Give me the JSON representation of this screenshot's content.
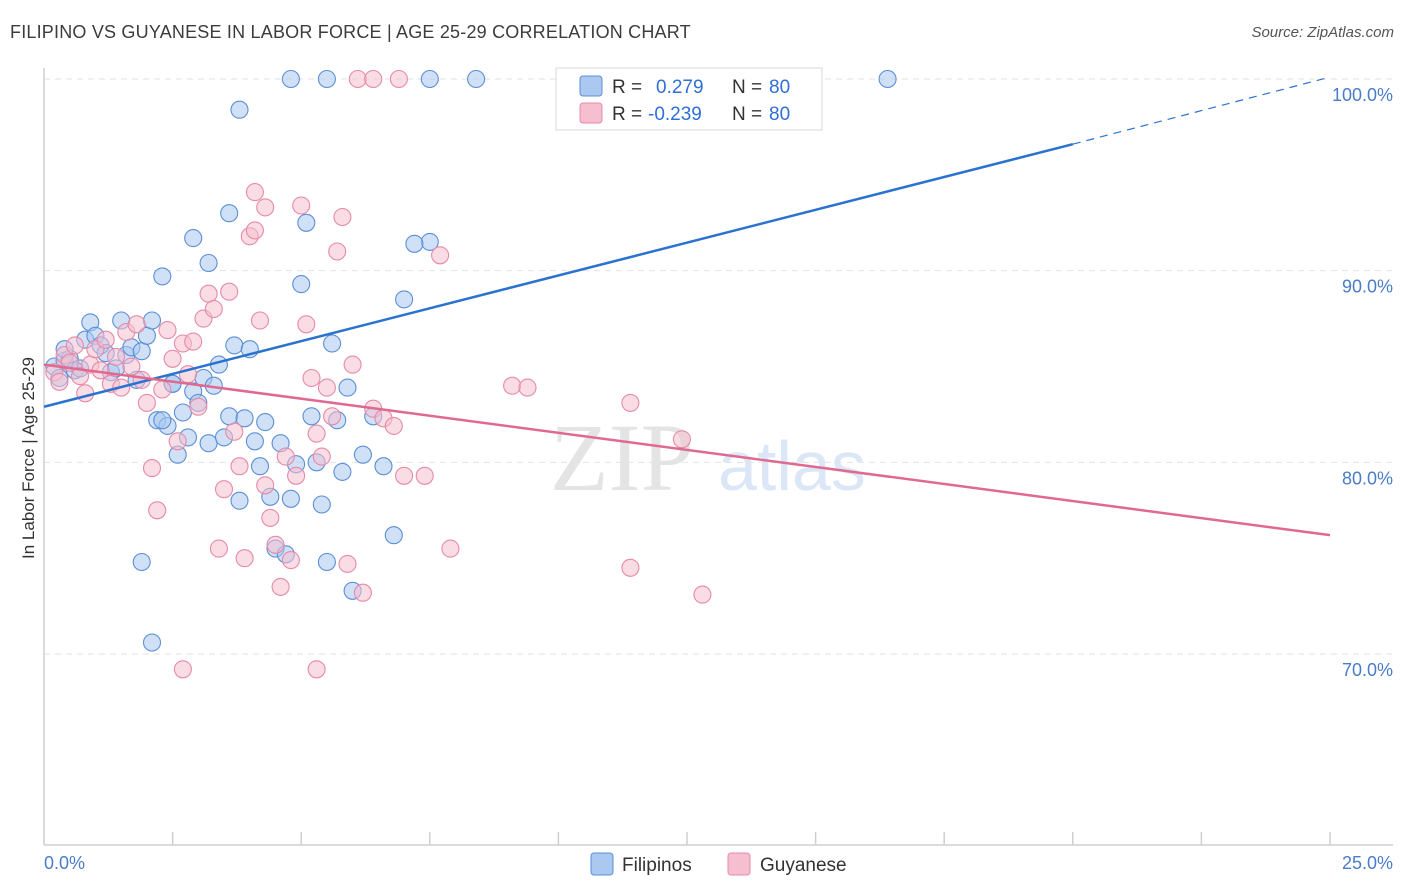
{
  "header": {
    "title": "FILIPINO VS GUYANESE IN LABOR FORCE | AGE 25-29 CORRELATION CHART",
    "source": "Source: ZipAtlas.com"
  },
  "watermark": {
    "zip": "ZIP",
    "atlas": "atlas"
  },
  "colors": {
    "blue_fill": "#aac8f0",
    "blue_stroke": "#5b8fd6",
    "blue_line": "#2a72d0",
    "pink_fill": "#f6bfd0",
    "pink_stroke": "#e68aa8",
    "pink_line": "#e0698f",
    "grid": "#e2e2e2",
    "tick_text": "#4a7cc9"
  },
  "legend": {
    "rows": [
      {
        "r_label": "R =",
        "r_value": "0.279",
        "n_label": "N =",
        "n_value": "80"
      },
      {
        "r_label": "R =",
        "r_value": "-0.239",
        "n_label": "N =",
        "n_value": "80"
      }
    ]
  },
  "bottom_legend": {
    "items": [
      "Filipinos",
      "Guyanese"
    ]
  },
  "chart_data": {
    "type": "scatter",
    "title": "FILIPINO VS GUYANESE IN LABOR FORCE | AGE 25-29 CORRELATION CHART",
    "xlabel": "",
    "ylabel": "In Labor Force | Age 25-29",
    "xlim": [
      0,
      25
    ],
    "ylim": [
      60,
      102
    ],
    "x_tick_labels": [
      "0.0%",
      "25.0%"
    ],
    "y_ticks": [
      70,
      80,
      90,
      100
    ],
    "y_tick_labels": [
      "70.0%",
      "80.0%",
      "90.0%",
      "100.0%"
    ],
    "grid": true,
    "series": [
      {
        "name": "Filipinos",
        "r": 0.279,
        "n": 80,
        "trend": {
          "x0": 0,
          "y0": 82.9,
          "x1": 20,
          "y1": 96.6,
          "dash_x_end": 25,
          "dash_y_end": 100.1
        },
        "points": [
          [
            0.2,
            85.0
          ],
          [
            0.3,
            84.4
          ],
          [
            0.4,
            85.3
          ],
          [
            0.5,
            85.4
          ],
          [
            0.6,
            84.8
          ],
          [
            0.4,
            85.9
          ],
          [
            0.7,
            84.9
          ],
          [
            0.8,
            86.4
          ],
          [
            0.9,
            87.3
          ],
          [
            1.0,
            86.6
          ],
          [
            1.1,
            86.1
          ],
          [
            1.2,
            85.7
          ],
          [
            1.3,
            84.7
          ],
          [
            1.4,
            84.9
          ],
          [
            1.5,
            87.4
          ],
          [
            1.6,
            85.6
          ],
          [
            1.7,
            86.0
          ],
          [
            1.8,
            84.3
          ],
          [
            1.9,
            85.8
          ],
          [
            2.0,
            86.6
          ],
          [
            2.1,
            87.4
          ],
          [
            2.2,
            82.2
          ],
          [
            2.3,
            89.7
          ],
          [
            2.4,
            81.9
          ],
          [
            2.5,
            84.1
          ],
          [
            2.6,
            80.4
          ],
          [
            2.7,
            82.6
          ],
          [
            2.8,
            81.3
          ],
          [
            2.9,
            83.7
          ],
          [
            3.0,
            83.1
          ],
          [
            3.1,
            84.4
          ],
          [
            3.2,
            81.0
          ],
          [
            3.3,
            84.0
          ],
          [
            3.4,
            85.1
          ],
          [
            3.5,
            81.3
          ],
          [
            3.6,
            82.4
          ],
          [
            3.7,
            86.1
          ],
          [
            3.8,
            78.0
          ],
          [
            3.9,
            82.3
          ],
          [
            4.0,
            85.9
          ],
          [
            4.1,
            81.1
          ],
          [
            4.2,
            79.8
          ],
          [
            4.3,
            82.1
          ],
          [
            4.4,
            78.2
          ],
          [
            4.5,
            75.5
          ],
          [
            4.6,
            81.0
          ],
          [
            4.7,
            75.2
          ],
          [
            4.8,
            78.1
          ],
          [
            4.9,
            79.9
          ],
          [
            5.0,
            89.3
          ],
          [
            5.1,
            92.5
          ],
          [
            5.2,
            82.4
          ],
          [
            5.3,
            80.0
          ],
          [
            5.4,
            77.8
          ],
          [
            5.5,
            74.8
          ],
          [
            5.6,
            86.2
          ],
          [
            5.7,
            82.2
          ],
          [
            5.8,
            79.5
          ],
          [
            5.9,
            83.9
          ],
          [
            6.0,
            73.3
          ],
          [
            6.2,
            80.4
          ],
          [
            6.4,
            82.4
          ],
          [
            6.6,
            79.8
          ],
          [
            6.8,
            76.2
          ],
          [
            7.0,
            88.5
          ],
          [
            1.9,
            74.8
          ],
          [
            2.1,
            70.6
          ],
          [
            2.3,
            82.2
          ],
          [
            2.5,
            84.1
          ],
          [
            2.9,
            91.7
          ],
          [
            3.2,
            90.4
          ],
          [
            3.6,
            93.0
          ],
          [
            3.8,
            98.4
          ],
          [
            4.8,
            100.0
          ],
          [
            5.5,
            100.0
          ],
          [
            7.5,
            91.5
          ],
          [
            7.2,
            91.4
          ],
          [
            7.5,
            100.0
          ],
          [
            8.4,
            100.0
          ],
          [
            16.4,
            100.0
          ]
        ]
      },
      {
        "name": "Guyanese",
        "r": -0.239,
        "n": 80,
        "trend": {
          "x0": 0,
          "y0": 85.1,
          "x1": 25,
          "y1": 76.2
        },
        "points": [
          [
            0.2,
            84.7
          ],
          [
            0.3,
            84.2
          ],
          [
            0.4,
            85.6
          ],
          [
            0.5,
            85.2
          ],
          [
            0.6,
            86.1
          ],
          [
            0.7,
            84.5
          ],
          [
            0.8,
            83.6
          ],
          [
            0.9,
            85.1
          ],
          [
            1.0,
            85.9
          ],
          [
            1.1,
            84.8
          ],
          [
            1.2,
            86.4
          ],
          [
            1.3,
            84.1
          ],
          [
            1.4,
            85.5
          ],
          [
            1.5,
            83.9
          ],
          [
            1.6,
            86.8
          ],
          [
            1.7,
            85.0
          ],
          [
            1.8,
            87.2
          ],
          [
            1.9,
            84.3
          ],
          [
            2.0,
            83.1
          ],
          [
            2.1,
            79.7
          ],
          [
            2.2,
            77.5
          ],
          [
            2.3,
            83.8
          ],
          [
            2.4,
            86.9
          ],
          [
            2.5,
            85.4
          ],
          [
            2.6,
            81.1
          ],
          [
            2.7,
            86.2
          ],
          [
            2.8,
            84.6
          ],
          [
            2.9,
            86.3
          ],
          [
            3.0,
            82.9
          ],
          [
            3.1,
            87.5
          ],
          [
            3.2,
            88.8
          ],
          [
            3.3,
            88.0
          ],
          [
            3.4,
            75.5
          ],
          [
            3.5,
            78.6
          ],
          [
            3.6,
            88.9
          ],
          [
            3.7,
            81.6
          ],
          [
            3.8,
            79.8
          ],
          [
            3.9,
            75.0
          ],
          [
            4.0,
            91.8
          ],
          [
            4.1,
            92.1
          ],
          [
            4.2,
            87.4
          ],
          [
            4.3,
            78.8
          ],
          [
            4.4,
            77.1
          ],
          [
            4.5,
            75.7
          ],
          [
            4.6,
            73.5
          ],
          [
            4.7,
            80.3
          ],
          [
            4.8,
            74.9
          ],
          [
            4.9,
            79.3
          ],
          [
            5.0,
            93.4
          ],
          [
            5.1,
            87.2
          ],
          [
            5.2,
            84.4
          ],
          [
            5.3,
            81.5
          ],
          [
            5.4,
            80.3
          ],
          [
            5.5,
            83.9
          ],
          [
            5.6,
            82.4
          ],
          [
            5.7,
            91.0
          ],
          [
            5.8,
            92.8
          ],
          [
            5.9,
            74.7
          ],
          [
            6.0,
            85.1
          ],
          [
            6.2,
            73.2
          ],
          [
            6.4,
            82.8
          ],
          [
            6.6,
            82.3
          ],
          [
            6.8,
            81.9
          ],
          [
            7.0,
            79.3
          ],
          [
            7.4,
            79.3
          ],
          [
            7.9,
            75.5
          ],
          [
            9.1,
            84.0
          ],
          [
            9.4,
            83.9
          ],
          [
            11.4,
            83.1
          ],
          [
            11.4,
            74.5
          ],
          [
            12.4,
            81.2
          ],
          [
            12.8,
            73.1
          ],
          [
            2.7,
            69.2
          ],
          [
            4.1,
            94.1
          ],
          [
            4.3,
            93.3
          ],
          [
            5.3,
            69.2
          ],
          [
            6.1,
            100.0
          ],
          [
            6.4,
            100.0
          ],
          [
            6.9,
            100.0
          ],
          [
            7.7,
            90.8
          ]
        ]
      }
    ]
  }
}
